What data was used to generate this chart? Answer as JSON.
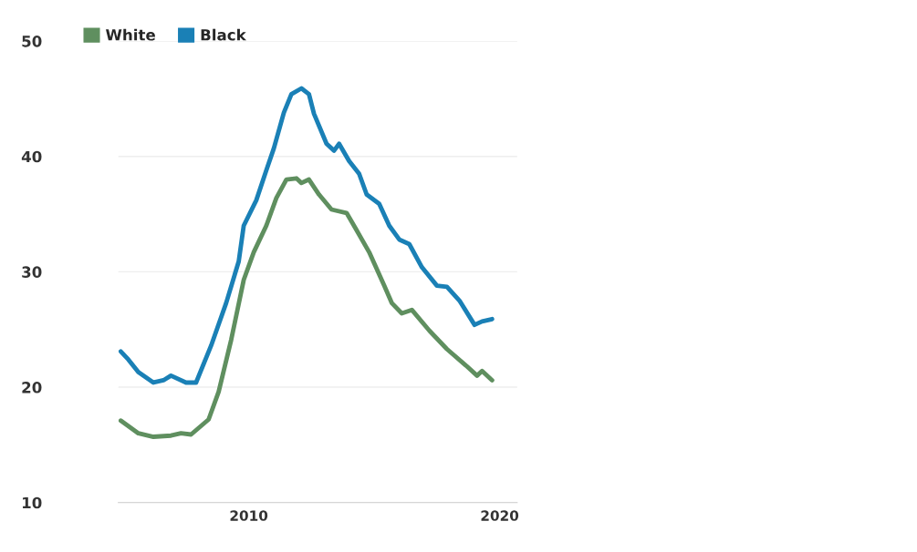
{
  "chart_data": {
    "type": "line",
    "xlim": [
      2004.8,
      2020.7
    ],
    "xticks": [
      2010,
      2020
    ],
    "ylim": [
      10,
      50
    ],
    "yticks": [
      10,
      20,
      30,
      40,
      50
    ],
    "grid": "y",
    "legend": "top left",
    "line_style": "solid",
    "series": [
      {
        "name": "White",
        "color": "#5f8f5f",
        "x": [
          2004.9,
          2005.6,
          2006.2,
          2006.9,
          2007.3,
          2007.7,
          2008.4,
          2008.8,
          2009.3,
          2009.8,
          2010.2,
          2010.7,
          2011.1,
          2011.5,
          2011.9,
          2012.1,
          2012.4,
          2012.8,
          2013.3,
          2013.9,
          2014.3,
          2014.8,
          2015.4,
          2015.7,
          2016.1,
          2016.5,
          2017.2,
          2017.9,
          2018.7,
          2019.1,
          2019.3,
          2019.7
        ],
        "values": [
          17.1,
          16.0,
          15.7,
          15.8,
          16.0,
          15.9,
          17.2,
          19.6,
          24.1,
          29.3,
          31.7,
          34.0,
          36.4,
          38.0,
          38.1,
          37.7,
          38.0,
          36.7,
          35.4,
          35.1,
          33.6,
          31.7,
          28.8,
          27.3,
          26.4,
          26.7,
          24.9,
          23.3,
          21.8,
          21.0,
          21.4,
          20.6
        ]
      },
      {
        "name": "Black",
        "color": "#1a80b6",
        "x": [
          2004.9,
          2005.2,
          2005.6,
          2006.2,
          2006.6,
          2006.9,
          2007.5,
          2007.9,
          2008.5,
          2009.1,
          2009.6,
          2009.8,
          2010.3,
          2010.7,
          2011.0,
          2011.4,
          2011.7,
          2012.1,
          2012.4,
          2012.6,
          2013.1,
          2013.4,
          2013.6,
          2014.0,
          2014.4,
          2014.7,
          2015.2,
          2015.6,
          2016.0,
          2016.4,
          2016.9,
          2017.5,
          2017.9,
          2018.4,
          2019.0,
          2019.3,
          2019.7
        ],
        "values": [
          23.1,
          22.4,
          21.3,
          20.4,
          20.6,
          21.0,
          20.4,
          20.4,
          23.6,
          27.3,
          30.9,
          34.0,
          36.2,
          38.8,
          40.7,
          43.8,
          45.4,
          45.9,
          45.4,
          43.7,
          41.1,
          40.5,
          41.1,
          39.6,
          38.5,
          36.7,
          35.9,
          34.0,
          32.8,
          32.4,
          30.4,
          28.8,
          28.7,
          27.5,
          25.4,
          25.7,
          25.9
        ]
      }
    ]
  }
}
